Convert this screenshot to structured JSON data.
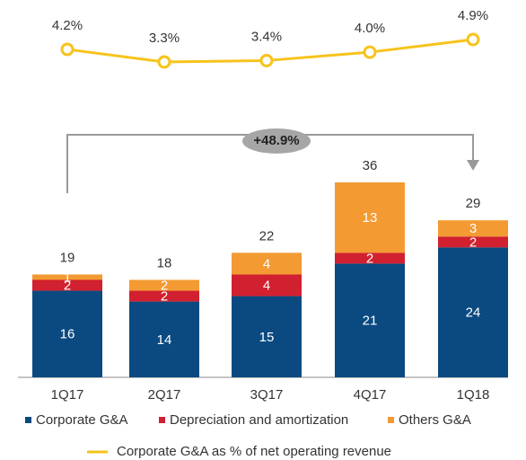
{
  "chart_data": {
    "type": "bar",
    "categories": [
      "1Q17",
      "2Q17",
      "3Q17",
      "4Q17",
      "1Q18"
    ],
    "series": [
      {
        "name": "Corporate G&A",
        "color": "#0a4a80",
        "values": [
          16,
          14,
          15,
          21,
          24
        ]
      },
      {
        "name": "Depreciation and amortization",
        "color": "#d1202f",
        "values": [
          2,
          2,
          4,
          2,
          2
        ]
      },
      {
        "name": "Others G&A",
        "color": "#f39a33",
        "values": [
          1,
          2,
          4,
          13,
          3
        ]
      }
    ],
    "totals": [
      19,
      18,
      22,
      36,
      29
    ],
    "line": {
      "type": "line",
      "name": "Corporate G&A as % of net operating revenue",
      "color": "#f7c31c",
      "values": [
        4.2,
        3.3,
        3.4,
        4.0,
        4.9
      ],
      "value_labels": [
        "4.2%",
        "3.3%",
        "3.4%",
        "4.0%",
        "4.9%"
      ]
    },
    "annotation": "+48.9%"
  }
}
